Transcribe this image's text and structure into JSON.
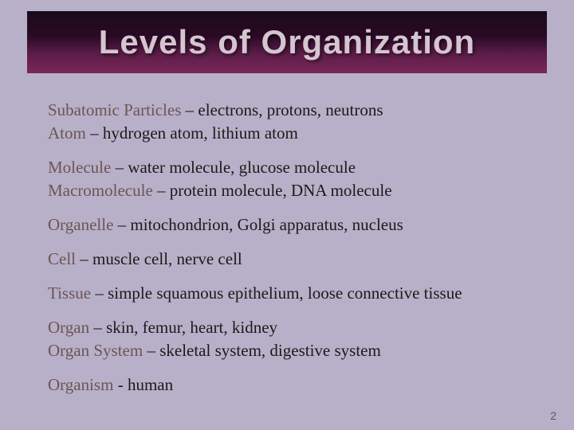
{
  "slide": {
    "title": "Levels of Organization",
    "background_color": "#b8b0c8",
    "title_box": {
      "gradient_top": "#1a0a1a",
      "gradient_bottom": "#7a2858",
      "text_color": "#d4c5d0",
      "font_size": 42
    },
    "body_font_size": 21,
    "body_text_color": "#1a1a1a",
    "term_color": "#6b5555",
    "groups": [
      [
        {
          "term": "Subatomic Particles",
          "desc": " – electrons, protons, neutrons"
        },
        {
          "term": "Atom",
          "desc": " – hydrogen atom, lithium atom"
        }
      ],
      [
        {
          "term": "Molecule",
          "desc": " – water molecule, glucose molecule"
        },
        {
          "term": "Macromolecule",
          "desc": " – protein molecule, DNA molecule"
        }
      ],
      [
        {
          "term": "Organelle",
          "desc": " – mitochondrion, Golgi apparatus, nucleus"
        }
      ],
      [
        {
          "term": "Cell",
          "desc": " – muscle cell, nerve cell"
        }
      ],
      [
        {
          "term": "Tissue",
          "desc": " – simple squamous epithelium, loose connective tissue"
        }
      ],
      [
        {
          "term": "Organ",
          "desc": " – skin, femur, heart, kidney"
        },
        {
          "term": "Organ System",
          "desc": " – skeletal system, digestive system"
        }
      ],
      [
        {
          "term": "Organism",
          "desc": " - human"
        }
      ]
    ],
    "page_number": "2"
  }
}
